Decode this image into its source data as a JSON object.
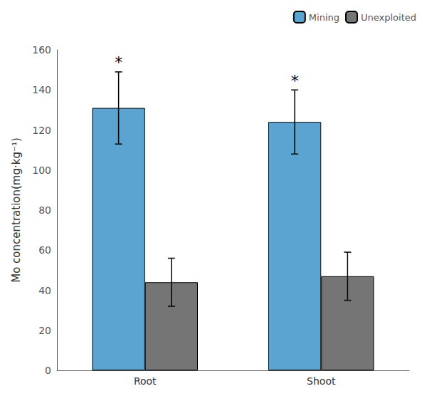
{
  "chart_data": {
    "type": "bar",
    "ylabel": "Mo concentration(mg·kg⁻¹)",
    "categories": [
      "Root",
      "Shoot"
    ],
    "series": [
      {
        "name": "Mining",
        "color": "#5BA3D0",
        "values": [
          131,
          124
        ],
        "errors": [
          18,
          16
        ]
      },
      {
        "name": "Unexploited",
        "color": "#757575",
        "values": [
          44,
          47
        ],
        "errors": [
          12,
          12
        ]
      }
    ],
    "annotations": [
      {
        "text": "*",
        "category": "Root",
        "series": "Mining"
      },
      {
        "text": "*",
        "category": "Shoot",
        "series": "Mining"
      }
    ],
    "ylim": [
      0,
      160
    ],
    "yticks": [
      0,
      20,
      40,
      60,
      80,
      100,
      120,
      140,
      160
    ],
    "grid": false,
    "legend": "upper right"
  }
}
